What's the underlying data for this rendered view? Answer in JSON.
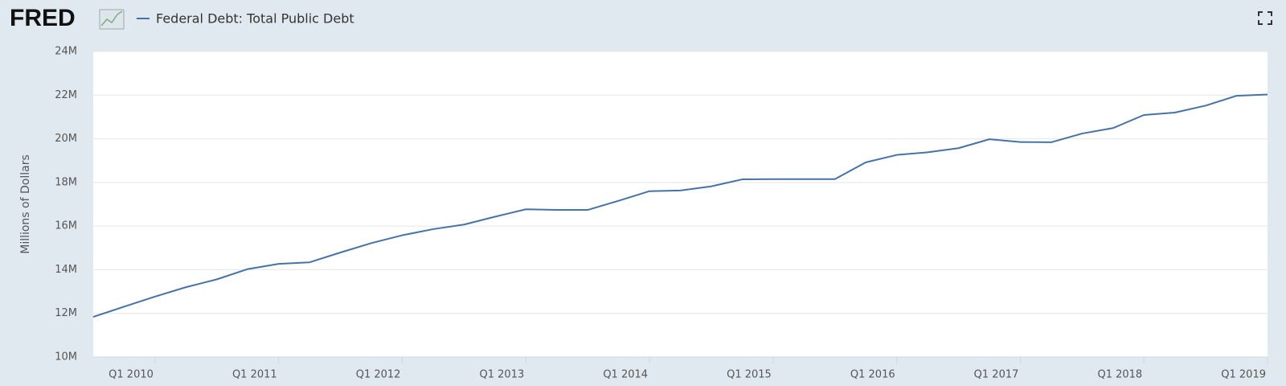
{
  "logo": "FRED",
  "chart_data": {
    "type": "line",
    "y_label": "Millions of Dollars",
    "categories": [
      null,
      null,
      "Q1 2010",
      null,
      null,
      null,
      "Q1 2011",
      null,
      null,
      null,
      "Q1 2012",
      null,
      null,
      null,
      "Q1 2013",
      null,
      null,
      null,
      "Q1 2014",
      null,
      null,
      null,
      "Q1 2015",
      null,
      null,
      null,
      "Q1 2016",
      null,
      null,
      null,
      "Q1 2017",
      null,
      null,
      null,
      "Q1 2018",
      null,
      null,
      null,
      "Q1 2019"
    ],
    "series": [
      {
        "name": "Federal Debt: Total Public Debt",
        "color": "#4572a7",
        "values": [
          11840000,
          12310000,
          12770000,
          13200000,
          13560000,
          14030000,
          14270000,
          14340000,
          14790000,
          15220000,
          15580000,
          15860000,
          16070000,
          16430000,
          16770000,
          16740000,
          16740000,
          17160000,
          17600000,
          17630000,
          17820000,
          18140000,
          18150000,
          18150000,
          18150000,
          18920000,
          19260000,
          19380000,
          19570000,
          19980000,
          19850000,
          19840000,
          20240000,
          20490000,
          21090000,
          21200000,
          21520000,
          21970000,
          22030000
        ]
      }
    ],
    "ylim": [
      10000000,
      24000000
    ],
    "yticks": [
      {
        "value": 10000000,
        "label": "10M"
      },
      {
        "value": 12000000,
        "label": "12M"
      },
      {
        "value": 14000000,
        "label": "14M"
      },
      {
        "value": 16000000,
        "label": "16M"
      },
      {
        "value": 18000000,
        "label": "18M"
      },
      {
        "value": 20000000,
        "label": "20M"
      },
      {
        "value": 22000000,
        "label": "22M"
      },
      {
        "value": 24000000,
        "label": "24M"
      }
    ],
    "grid": true
  }
}
